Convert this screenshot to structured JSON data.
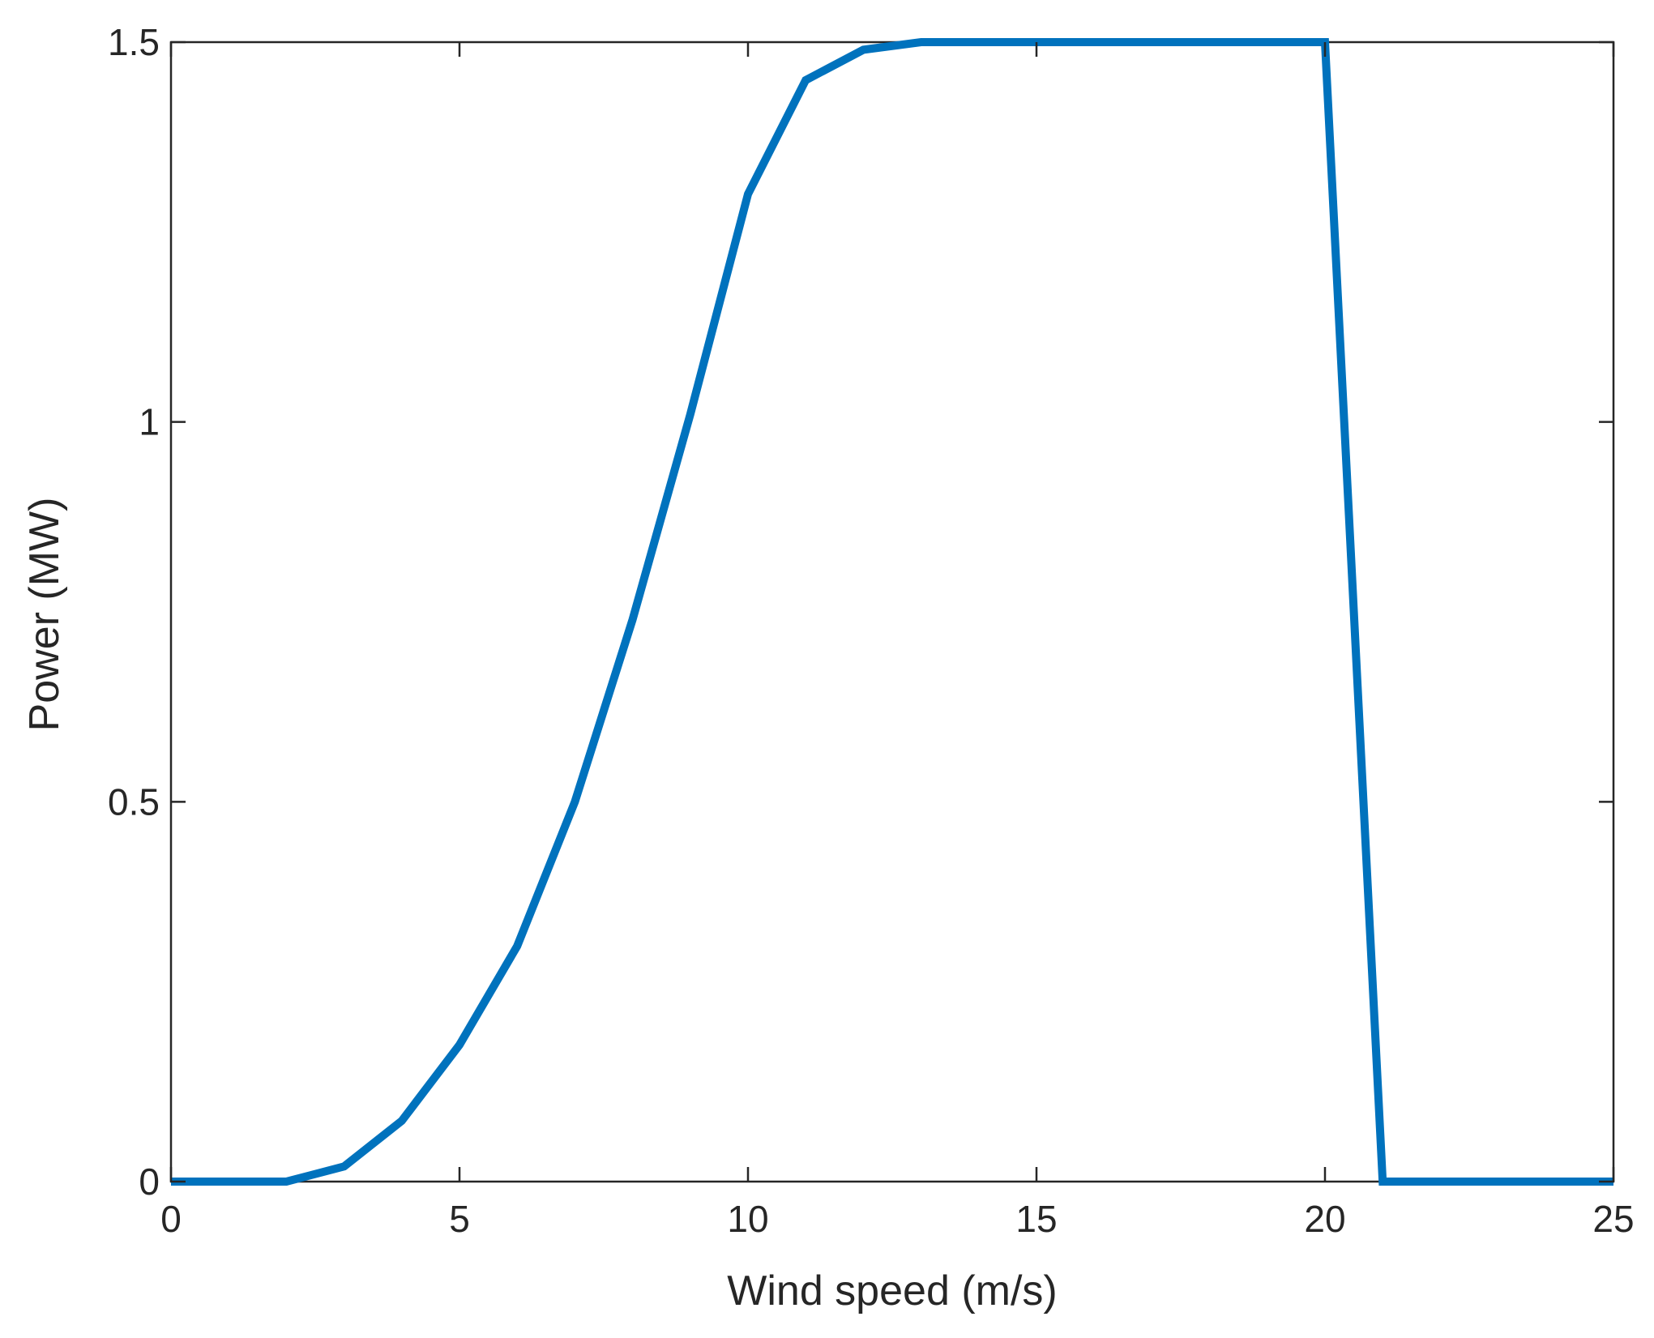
{
  "chart_data": {
    "type": "line",
    "title": "",
    "xlabel": "Wind speed (m/s)",
    "ylabel": "Power (MW)",
    "xlim": [
      0,
      25
    ],
    "ylim": [
      0,
      1.5
    ],
    "xticks": [
      0,
      5,
      10,
      15,
      20,
      25
    ],
    "yticks": [
      0,
      0.5,
      1,
      1.5
    ],
    "xtick_labels": [
      "0",
      "5",
      "10",
      "15",
      "20",
      "25"
    ],
    "ytick_labels": [
      "0",
      "0.5",
      "1",
      "1.5"
    ],
    "grid": false,
    "legend": "none",
    "series": [
      {
        "color": "#0072BD",
        "x": [
          0,
          1,
          2,
          3,
          4,
          5,
          6,
          7,
          8,
          9,
          10,
          11,
          12,
          13,
          14,
          15,
          16,
          17,
          18,
          19,
          20,
          21,
          22,
          23,
          24,
          25
        ],
        "y": [
          0,
          0,
          0,
          0.02,
          0.08,
          0.18,
          0.31,
          0.5,
          0.74,
          1.01,
          1.3,
          1.45,
          1.49,
          1.5,
          1.5,
          1.5,
          1.5,
          1.5,
          1.5,
          1.5,
          1.5,
          0,
          0,
          0,
          0,
          0
        ]
      }
    ]
  }
}
